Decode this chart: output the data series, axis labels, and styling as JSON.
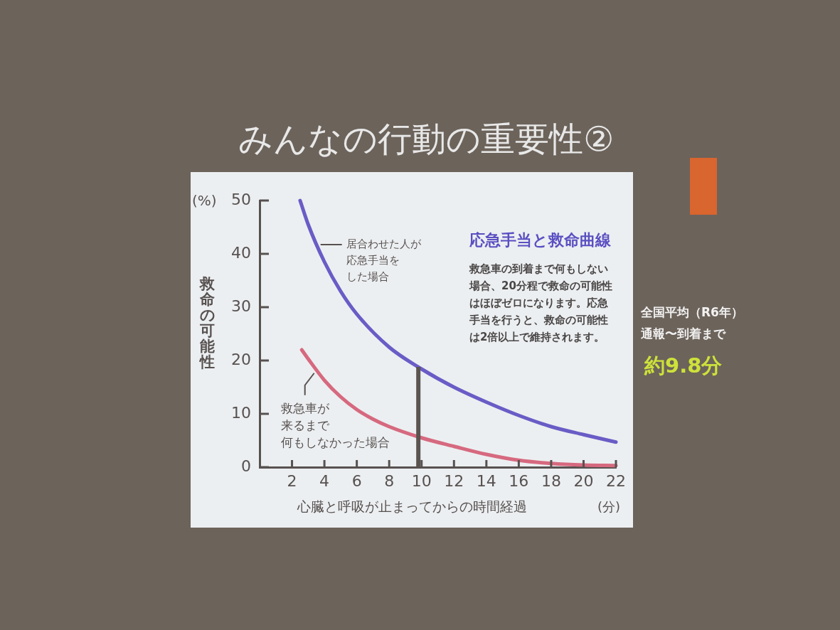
{
  "chart_data": {
    "type": "line",
    "title": "みんなの行動の重要性②",
    "subtitle": "応急手当と救命曲線",
    "xlabel": "心臓と呼吸が止まってからの時間経過",
    "ylabel": "救命の可能性",
    "xlim": [
      0,
      22
    ],
    "xticks": [
      2,
      4,
      6,
      8,
      10,
      12,
      14,
      16,
      18,
      20,
      22
    ],
    "ylim": [
      0,
      50
    ],
    "yticks": [
      0,
      10,
      20,
      30,
      40,
      50
    ],
    "series": [
      {
        "name": "居合わせた人が応急手当をした場合",
        "color": "#6a5cc6",
        "x": [
          2.5,
          3,
          4,
          5,
          6,
          8,
          10,
          12,
          14,
          16,
          18,
          20,
          22
        ],
        "values": [
          50,
          45.5,
          38.5,
          33,
          28.7,
          22.5,
          18.4,
          15,
          12.2,
          9.7,
          7.6,
          6.1,
          4.7
        ]
      },
      {
        "name": "救急車が来るまで何もしなかった場合",
        "color": "#d6697f",
        "x": [
          2.6,
          3,
          4,
          5,
          6,
          7,
          8,
          10,
          12,
          14,
          16,
          18,
          20,
          22
        ],
        "values": [
          22,
          20.3,
          16.3,
          13.2,
          10.8,
          9,
          7.6,
          5.5,
          3.9,
          2.4,
          1.3,
          0.7,
          0.4,
          0.3
        ]
      }
    ],
    "ref_lines": [
      {
        "axis": "x",
        "value": 9.8,
        "color": "#5a5350"
      }
    ],
    "annotations": [
      "(%)",
      "(分)",
      "救急車の到着まで何もしない場合、20分程で救命の可能性はほぼゼロになります。応急手当を行うと、救命の可能性は2倍以上で維持されます。",
      "全国平均（R6年）通報〜到着まで",
      "約9.8分"
    ],
    "marker": "none"
  }
}
